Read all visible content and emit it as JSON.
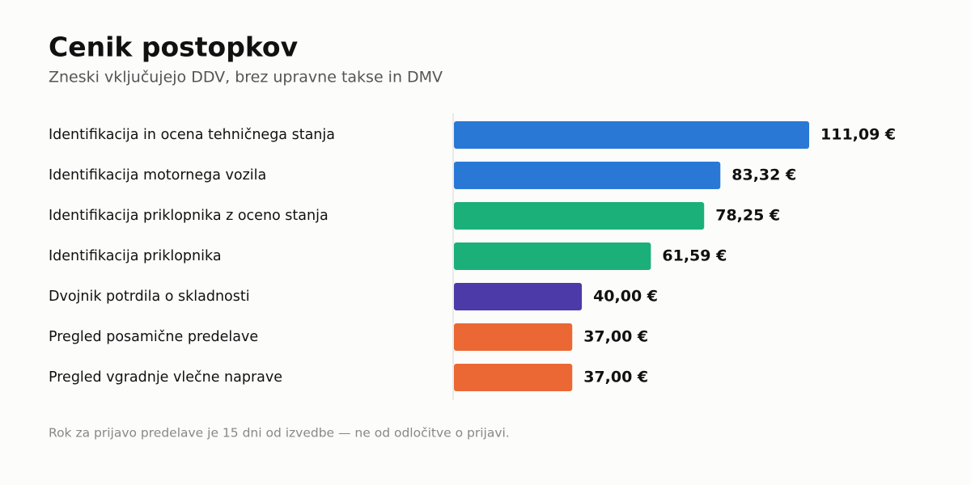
{
  "chart_data": {
    "type": "bar",
    "orientation": "horizontal",
    "title": "Cenik postopkov",
    "subtitle": "Zneski vključujejo DDV, brez upravne takse in DMV",
    "categories": [
      "Identifikacija in ocena tehničnega stanja",
      "Identifikacija motornega vozila",
      "Identifikacija priklopnika z oceno stanja",
      "Identifikacija priklopnika",
      "Dvojnik potrdila o skladnosti",
      "Pregled posamične predelave",
      "Pregled vgradnje vlečne naprave"
    ],
    "values": [
      111.09,
      83.32,
      78.25,
      61.59,
      40.0,
      37.0,
      37.0
    ],
    "value_labels": [
      "111,09 €",
      "83,32 €",
      "78,25 €",
      "61,59 €",
      "40,00 €",
      "37,00 €",
      "37,00 €"
    ],
    "colors": [
      "#2a78d6",
      "#2a78d6",
      "#1bb07a",
      "#1bb07a",
      "#4b3aa7",
      "#eb6834",
      "#eb6834"
    ],
    "footnote": "Rok za prijavo predelave je 15 dni od izvedbe — ne od odločitve o prijavi."
  }
}
